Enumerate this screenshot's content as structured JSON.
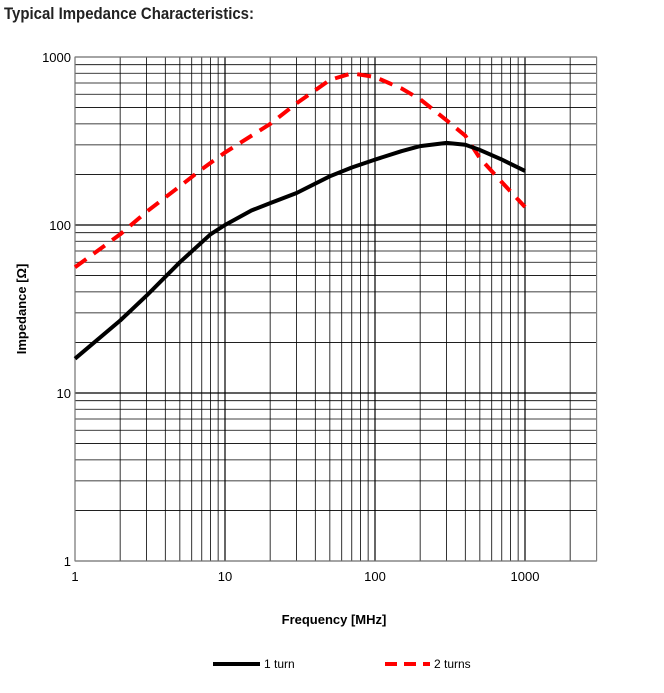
{
  "chart_data": {
    "type": "line",
    "title": "Typical Impedance Characteristics:",
    "xlabel": "Frequency [MHz]",
    "ylabel": "Impedance [Ω]",
    "xscale": "log",
    "yscale": "log",
    "xlim": [
      1,
      3000
    ],
    "ylim": [
      1,
      1000
    ],
    "xticks": [
      "1",
      "10",
      "100",
      "1000"
    ],
    "yticks": [
      "1",
      "10",
      "100",
      "1000"
    ],
    "grid": true,
    "legend_position": "bottom",
    "series": [
      {
        "name": "1 turn",
        "color": "#000000",
        "style": "solid",
        "x": [
          1,
          2,
          3,
          5,
          8,
          10,
          15,
          20,
          30,
          50,
          70,
          100,
          150,
          200,
          300,
          400,
          500,
          700,
          1000
        ],
        "y": [
          16,
          27,
          38,
          60,
          88,
          100,
          122,
          135,
          155,
          195,
          220,
          245,
          275,
          295,
          308,
          300,
          280,
          245,
          210
        ]
      },
      {
        "name": "2 turns",
        "color": "#ff0000",
        "style": "dashed",
        "x": [
          1,
          2,
          3,
          5,
          7,
          10,
          20,
          30,
          50,
          70,
          100,
          150,
          200,
          300,
          400,
          500,
          700,
          1000
        ],
        "y": [
          56,
          88,
          120,
          170,
          215,
          270,
          400,
          530,
          730,
          800,
          760,
          650,
          560,
          420,
          340,
          250,
          180,
          128
        ]
      }
    ]
  }
}
